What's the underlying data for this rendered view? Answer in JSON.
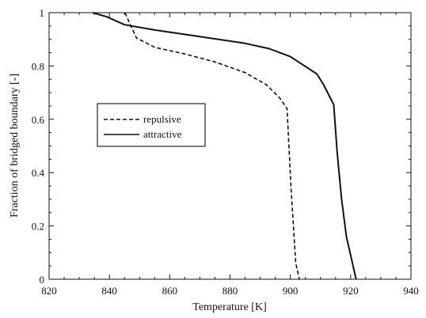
{
  "chart_data": {
    "type": "line",
    "title": "",
    "xlabel": "Temperature [K]",
    "ylabel": "Fraction of bridged boundary [-]",
    "xlim": [
      820,
      940
    ],
    "ylim": [
      0,
      1
    ],
    "x_ticks": [
      "820",
      "840",
      "860",
      "880",
      "900",
      "920",
      "940"
    ],
    "y_ticks": [
      "0",
      "0.2",
      "0.4",
      "0.6",
      "0.8",
      "1"
    ],
    "x_tick_values": [
      820,
      840,
      860,
      880,
      900,
      920,
      940
    ],
    "y_tick_values": [
      0,
      0.2,
      0.4,
      0.6,
      0.8,
      1
    ],
    "grid": false,
    "legend_position": "upper-left-center",
    "series": [
      {
        "name": "repulsive",
        "style": "dashed",
        "color": "#111111",
        "x": [
          845.2,
          846.7,
          849.0,
          855.0,
          865.0,
          875.0,
          885.0,
          892.0,
          896.5,
          898.0,
          898.9,
          900.3,
          901.8,
          903.0
        ],
        "y": [
          1.0,
          0.96,
          0.905,
          0.87,
          0.845,
          0.815,
          0.775,
          0.73,
          0.68,
          0.655,
          0.64,
          0.33,
          0.06,
          0.0
        ]
      },
      {
        "name": "attractive",
        "style": "solid",
        "color": "#111111",
        "x": [
          834.5,
          839.0,
          845.0,
          855.0,
          870.0,
          885.0,
          893.0,
          900.0,
          908.8,
          911.0,
          914.4,
          915.5,
          917.0,
          918.6,
          921.8
        ],
        "y": [
          1.0,
          0.985,
          0.955,
          0.935,
          0.91,
          0.885,
          0.865,
          0.835,
          0.77,
          0.73,
          0.655,
          0.48,
          0.3,
          0.16,
          0.0
        ]
      }
    ]
  }
}
